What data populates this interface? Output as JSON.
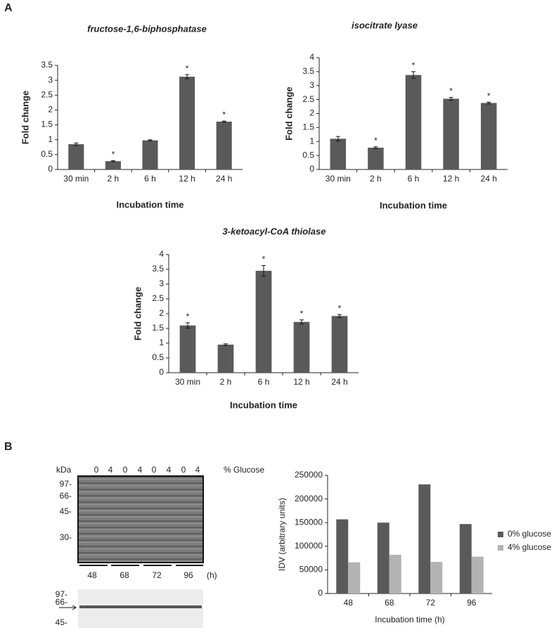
{
  "panel_labels": [
    "A",
    "B"
  ],
  "chart_data": [
    {
      "type": "bar",
      "title": "fructose-1,6-biphosphatase",
      "y_label": "Fold change",
      "x_label": "Incubation time",
      "categories": [
        "30 min",
        "2 h",
        "6 h",
        "12 h",
        "24 h"
      ],
      "values": [
        0.85,
        0.28,
        0.98,
        3.12,
        1.61
      ],
      "errors": [
        0.04,
        0.02,
        0.02,
        0.07,
        0.02
      ],
      "markers": [
        null,
        "*",
        null,
        "*",
        "*"
      ],
      "color": "#5a5a5a",
      "ylim": [
        0,
        3.5
      ],
      "yticks": [
        0,
        0.5,
        1,
        1.5,
        2,
        2.5,
        3,
        3.5
      ]
    },
    {
      "type": "bar",
      "title": "isocitrate lyase",
      "y_label": "Fold change",
      "x_label": "Incubation time",
      "categories": [
        "30 min",
        "2 h",
        "6 h",
        "12 h",
        "24 h"
      ],
      "values": [
        1.1,
        0.78,
        3.38,
        2.53,
        2.38
      ],
      "errors": [
        0.08,
        0.03,
        0.12,
        0.05,
        0.03
      ],
      "markers": [
        null,
        "*",
        "*",
        "*",
        "*"
      ],
      "color": "#5a5a5a",
      "ylim": [
        0,
        4
      ],
      "yticks": [
        0,
        0.5,
        1,
        1.5,
        2,
        2.5,
        3,
        3.5,
        4
      ]
    },
    {
      "type": "bar",
      "title": "3-ketoacyl-CoA thiolase",
      "y_label": "Fold change",
      "x_label": "Incubation time",
      "categories": [
        "30 min",
        "2 h",
        "6 h",
        "12 h",
        "24 h"
      ],
      "values": [
        1.6,
        0.95,
        3.45,
        1.72,
        1.92
      ],
      "errors": [
        0.09,
        0.03,
        0.18,
        0.07,
        0.05
      ],
      "markers": [
        "*",
        null,
        "*",
        "*",
        "*"
      ],
      "color": "#5a5a5a",
      "ylim": [
        0,
        4
      ],
      "yticks": [
        0,
        0.5,
        1,
        1.5,
        2,
        2.5,
        3,
        3.5,
        4
      ]
    },
    {
      "type": "bar",
      "y_label": "IDV (arbitrary units)",
      "x_label": "Incubation time (h)",
      "categories": [
        "48",
        "68",
        "72",
        "96"
      ],
      "series": [
        {
          "name": "0% glucose",
          "color": "#5a5a5a",
          "values": [
            157000,
            150000,
            231000,
            147000
          ]
        },
        {
          "name": "4% glucose",
          "color": "#b3b3b3",
          "values": [
            66000,
            82000,
            67000,
            78000
          ]
        }
      ],
      "ylim": [
        0,
        250000
      ],
      "yticks": [
        0,
        50000,
        100000,
        150000,
        200000,
        250000
      ],
      "legend": "right"
    }
  ],
  "gel": {
    "kda": "kDa",
    "glucose_label": "% Glucose",
    "lanes": [
      "0",
      "4",
      "0",
      "4",
      "0",
      "4",
      "0",
      "4"
    ],
    "markers": [
      "97-",
      "66-",
      "45-",
      "30-"
    ],
    "times": [
      "48",
      "68",
      "72",
      "96"
    ],
    "time_unit": "(h)",
    "blot_markers": [
      "97-",
      "66-",
      "45-"
    ]
  }
}
